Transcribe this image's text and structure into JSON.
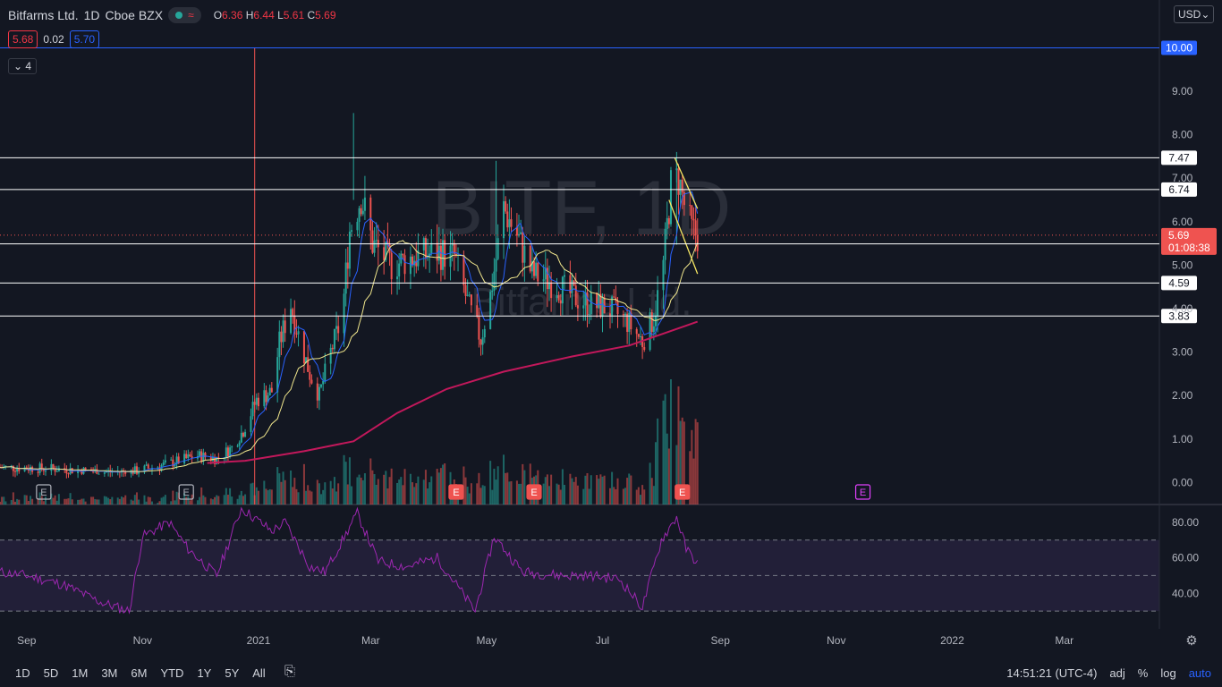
{
  "header": {
    "symbol": "Bitfarms Ltd.",
    "interval": "1D",
    "exchange": "Cboe BZX",
    "open_label": "O",
    "open": "6.36",
    "high_label": "H",
    "high": "6.44",
    "low_label": "L",
    "low": "5.61",
    "close_label": "C",
    "close": "5.69",
    "bid": "5.68",
    "spread": "0.02",
    "ask": "5.70",
    "indicators_count": "4",
    "currency": "USD"
  },
  "watermark": {
    "ticker": "BITF, 1D",
    "name": "Bitfarms Ltd."
  },
  "colors": {
    "background": "#131722",
    "up": "#26a69a",
    "down": "#ef5350",
    "ma_fast": "#2962ff",
    "ma_mid": "#f0e68c",
    "ma_200": "#c2185b",
    "rsi": "#9c27b0",
    "resistance": "#ffffff",
    "blue_line": "#2962ff"
  },
  "chart_data": {
    "type": "candlestick",
    "title": "Bitfarms Ltd. · 1D · Cboe BZX",
    "ylim": [
      -0.3,
      11.1
    ],
    "y_ticks": [
      "0.00",
      "1.00",
      "2.00",
      "3.00",
      "4.00",
      "5.00",
      "6.00",
      "7.00",
      "8.00",
      "9.00",
      "10.00"
    ],
    "x_tick_labels": [
      "Sep",
      "Nov",
      "2021",
      "Mar",
      "May",
      "Jul",
      "Sep",
      "Nov",
      "2022",
      "Mar"
    ],
    "x_tick_dates": [
      "2020-09-01",
      "2020-11-01",
      "2021-01-01",
      "2021-03-01",
      "2021-05-01",
      "2021-07-01",
      "2021-09-01",
      "2021-11-01",
      "2022-01-01",
      "2022-03-01"
    ],
    "x_range": [
      "2020-08-18",
      "2022-04-20"
    ],
    "last_candle_date": "2021-08-20",
    "current_price": 5.69,
    "countdown": "01:08:38",
    "horizontal_levels": [
      {
        "value": 10.0,
        "label": "10.00",
        "color": "#2962ff"
      },
      {
        "value": 7.47,
        "label": "7.47"
      },
      {
        "value": 6.74,
        "label": "6.74"
      },
      {
        "value": 5.49,
        "label": "5.49"
      },
      {
        "value": 4.59,
        "label": "4.59"
      },
      {
        "value": 3.83,
        "label": "3.83"
      }
    ],
    "vertical_marker_date": "2020-12-30",
    "price_path": [
      [
        "2020-08-18",
        0.35
      ],
      [
        "2020-09-15",
        0.32
      ],
      [
        "2020-10-10",
        0.25
      ],
      [
        "2020-10-25",
        0.24
      ],
      [
        "2020-11-10",
        0.38
      ],
      [
        "2020-11-30",
        0.62
      ],
      [
        "2020-12-10",
        0.55
      ],
      [
        "2020-12-18",
        0.8
      ],
      [
        "2020-12-24",
        1.2
      ],
      [
        "2020-12-31",
        1.9
      ],
      [
        "2021-01-08",
        2.1
      ],
      [
        "2021-01-12",
        3.2
      ],
      [
        "2021-01-18",
        4.1
      ],
      [
        "2021-01-22",
        3.4
      ],
      [
        "2021-01-28",
        2.5
      ],
      [
        "2021-02-02",
        2.0
      ],
      [
        "2021-02-08",
        3.0
      ],
      [
        "2021-02-14",
        3.8
      ],
      [
        "2021-02-18",
        5.8
      ],
      [
        "2021-02-24",
        6.6
      ],
      [
        "2021-03-02",
        5.5
      ],
      [
        "2021-03-12",
        5.0
      ],
      [
        "2021-03-25",
        5.2
      ],
      [
        "2021-04-06",
        5.3
      ],
      [
        "2021-04-14",
        5.2
      ],
      [
        "2021-04-22",
        4.0
      ],
      [
        "2021-04-28",
        3.3
      ],
      [
        "2021-05-03",
        4.3
      ],
      [
        "2021-05-10",
        6.3
      ],
      [
        "2021-05-17",
        5.7
      ],
      [
        "2021-05-25",
        4.8
      ],
      [
        "2021-06-05",
        4.6
      ],
      [
        "2021-06-15",
        4.3
      ],
      [
        "2021-06-25",
        4.1
      ],
      [
        "2021-07-05",
        4.0
      ],
      [
        "2021-07-14",
        3.7
      ],
      [
        "2021-07-22",
        3.25
      ],
      [
        "2021-07-28",
        3.8
      ],
      [
        "2021-08-02",
        5.0
      ],
      [
        "2021-08-06",
        6.8
      ],
      [
        "2021-08-10",
        7.0
      ],
      [
        "2021-08-13",
        6.4
      ],
      [
        "2021-08-17",
        5.8
      ],
      [
        "2021-08-20",
        5.69
      ]
    ],
    "annotations": {
      "spike_high": [
        [
          "2021-02-20",
          8.5
        ],
        [
          "2021-05-06",
          7.4
        ],
        [
          "2021-08-09",
          7.47
        ]
      ],
      "wedge_upper": [
        [
          "2021-08-08",
          7.47
        ],
        [
          "2021-08-20",
          6.3
        ]
      ],
      "wedge_lower": [
        [
          "2021-08-05",
          6.5
        ],
        [
          "2021-08-20",
          4.8
        ]
      ]
    },
    "ma_200": [
      [
        "2020-12-05",
        0.45
      ],
      [
        "2020-12-25",
        0.5
      ],
      [
        "2021-01-25",
        0.72
      ],
      [
        "2021-02-20",
        0.95
      ],
      [
        "2021-03-15",
        1.6
      ],
      [
        "2021-04-10",
        2.15
      ],
      [
        "2021-05-10",
        2.55
      ],
      [
        "2021-06-15",
        2.9
      ],
      [
        "2021-07-15",
        3.15
      ],
      [
        "2021-08-20",
        3.7
      ]
    ],
    "earnings_markers": [
      {
        "date": "2020-09-10",
        "style": "past"
      },
      {
        "date": "2020-11-24",
        "style": "past"
      },
      {
        "date": "2021-04-15",
        "style": "red"
      },
      {
        "date": "2021-05-26",
        "style": "red"
      },
      {
        "date": "2021-08-12",
        "style": "red"
      },
      {
        "date": "2021-11-15",
        "style": "future"
      }
    ],
    "rsi": {
      "ylim": [
        20,
        90
      ],
      "ticks": [
        "40.00",
        "60.00",
        "80.00"
      ],
      "band_upper": 70,
      "band_mid": 50,
      "band_lower": 30,
      "path": [
        [
          "2020-08-18",
          52
        ],
        [
          "2020-09-01",
          50
        ],
        [
          "2020-09-20",
          45
        ],
        [
          "2020-10-10",
          35
        ],
        [
          "2020-10-25",
          30
        ],
        [
          "2020-11-01",
          72
        ],
        [
          "2020-11-15",
          80
        ],
        [
          "2020-11-25",
          65
        ],
        [
          "2020-12-10",
          50
        ],
        [
          "2020-12-23",
          88
        ],
        [
          "2021-01-08",
          75
        ],
        [
          "2021-01-15",
          80
        ],
        [
          "2021-01-28",
          55
        ],
        [
          "2021-02-05",
          52
        ],
        [
          "2021-02-22",
          85
        ],
        [
          "2021-03-05",
          58
        ],
        [
          "2021-03-20",
          55
        ],
        [
          "2021-04-05",
          60
        ],
        [
          "2021-04-25",
          30
        ],
        [
          "2021-05-05",
          72
        ],
        [
          "2021-05-20",
          52
        ],
        [
          "2021-06-10",
          50
        ],
        [
          "2021-06-25",
          50
        ],
        [
          "2021-07-10",
          48
        ],
        [
          "2021-07-22",
          32
        ],
        [
          "2021-08-01",
          70
        ],
        [
          "2021-08-09",
          83
        ],
        [
          "2021-08-14",
          65
        ],
        [
          "2021-08-20",
          57
        ]
      ]
    }
  },
  "bottom_bar": {
    "timeframes": [
      "1D",
      "5D",
      "1M",
      "3M",
      "6M",
      "YTD",
      "1Y",
      "5Y",
      "All"
    ],
    "time": "14:51:21 (UTC-4)",
    "adj": "adj",
    "percent": "%",
    "log": "log",
    "auto": "auto"
  }
}
